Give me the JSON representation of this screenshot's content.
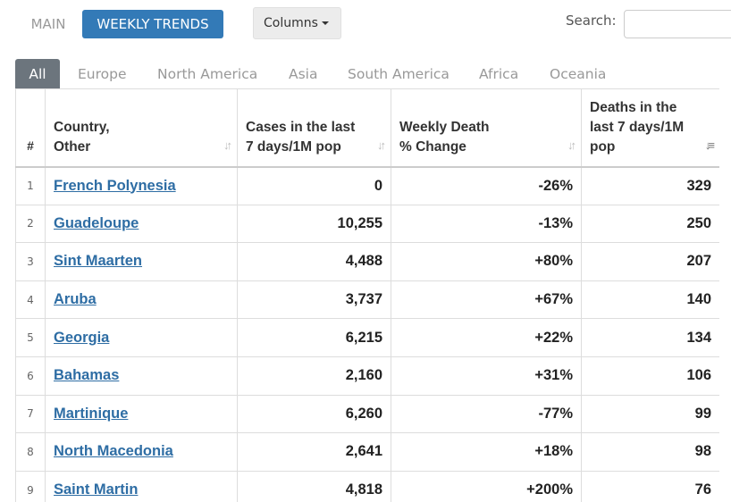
{
  "nav": {
    "main_label": "MAIN",
    "trends_label": "WEEKLY TRENDS",
    "columns_label": "Columns",
    "search_label": "Search:",
    "search_value": ""
  },
  "tabs": [
    {
      "label": "All",
      "active": true
    },
    {
      "label": "Europe"
    },
    {
      "label": "North America"
    },
    {
      "label": "Asia"
    },
    {
      "label": "South America"
    },
    {
      "label": "Africa"
    },
    {
      "label": "Oceania"
    }
  ],
  "table": {
    "headers": {
      "num": "#",
      "country_line1": "Country,",
      "country_line2": "Other",
      "cases_line1": "Cases in the last",
      "cases_line2": "7 days/1M pop",
      "change_line1": "Weekly Death",
      "change_line2": "% Change",
      "deaths_line1": "Deaths in the",
      "deaths_line2": "last 7 days/1M",
      "deaths_line3": "pop"
    },
    "rows": [
      {
        "num": "1",
        "country": "French Polynesia",
        "cases": "0",
        "change": "-26%",
        "deaths": "329"
      },
      {
        "num": "2",
        "country": "Guadeloupe",
        "cases": "10,255",
        "change": "-13%",
        "deaths": "250"
      },
      {
        "num": "3",
        "country": "Sint Maarten",
        "cases": "4,488",
        "change": "+80%",
        "deaths": "207"
      },
      {
        "num": "4",
        "country": "Aruba",
        "cases": "3,737",
        "change": "+67%",
        "deaths": "140"
      },
      {
        "num": "5",
        "country": "Georgia",
        "cases": "6,215",
        "change": "+22%",
        "deaths": "134"
      },
      {
        "num": "6",
        "country": "Bahamas",
        "cases": "2,160",
        "change": "+31%",
        "deaths": "106"
      },
      {
        "num": "7",
        "country": "Martinique",
        "cases": "6,260",
        "change": "-77%",
        "deaths": "99"
      },
      {
        "num": "8",
        "country": "North Macedonia",
        "cases": "2,641",
        "change": "+18%",
        "deaths": "98"
      },
      {
        "num": "9",
        "country": "Saint Martin",
        "cases": "4,818",
        "change": "+200%",
        "deaths": "76"
      }
    ]
  },
  "colors": {
    "primary": "#337ab7",
    "tab_active": "#6c757d",
    "link": "#2e6da4"
  }
}
